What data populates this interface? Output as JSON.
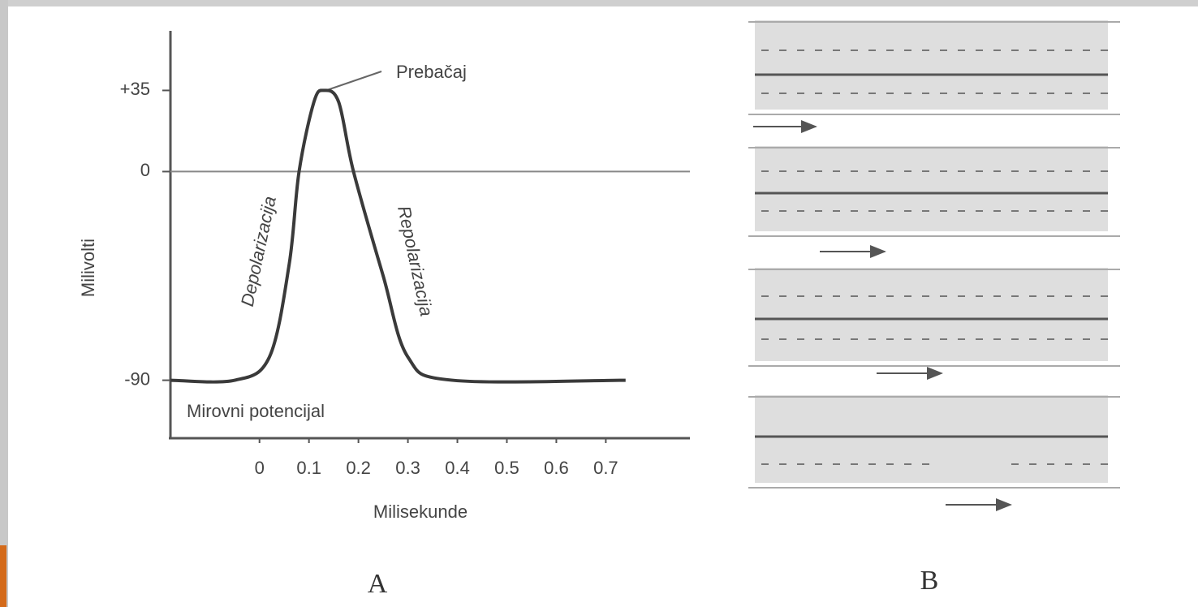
{
  "chart_data": {
    "type": "line",
    "x_label": "Milisekunde",
    "y_label": "Milivolti",
    "annotations": [
      "Prebačaj",
      "Depolarizacija",
      "Repolarizacija",
      "Mirovni potencijal"
    ],
    "x": [
      -0.18,
      -0.05,
      0.02,
      0.06,
      0.08,
      0.11,
      0.13,
      0.16,
      0.19,
      0.25,
      0.3,
      0.39,
      0.74
    ],
    "series": [
      {
        "color": "#3a3a3a",
        "values": [
          -90,
          -90,
          -80,
          -40,
          0,
          30,
          35,
          30,
          0,
          -45,
          -80,
          -90,
          -90
        ]
      }
    ],
    "xlim": [
      -0.18,
      0.87
    ],
    "ylim": [
      -115,
      60
    ],
    "xticks": [
      0,
      0.1,
      0.2,
      0.3,
      0.4,
      0.5,
      0.6,
      0.7
    ],
    "yticks": [
      {
        "value": 35,
        "label": "+35"
      },
      0,
      -90
    ],
    "zero_line": true
  },
  "panel_labels": [
    "A",
    "B"
  ]
}
